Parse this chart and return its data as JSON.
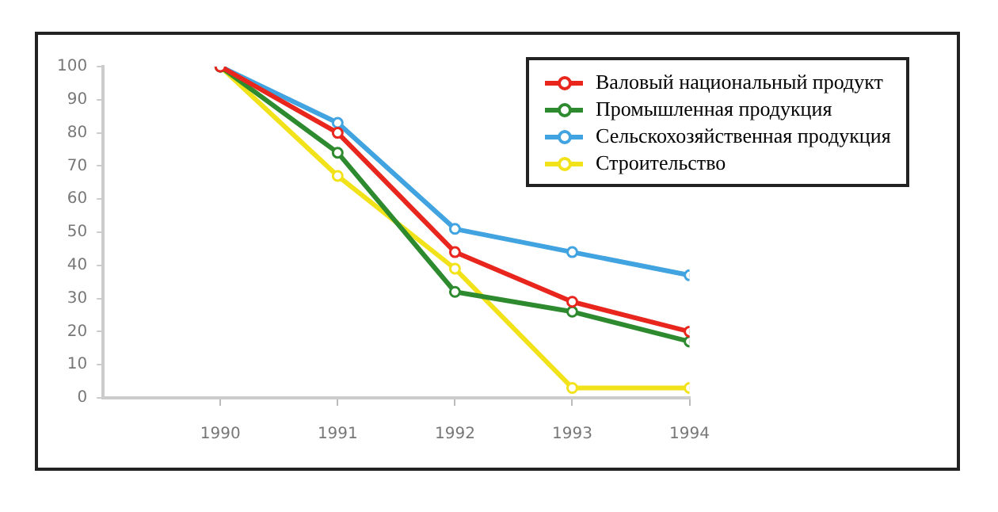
{
  "chart_data": {
    "type": "line",
    "x": [
      1990,
      1991,
      1992,
      1993,
      1994
    ],
    "xlim": [
      1989,
      1994
    ],
    "xticks": [
      1990,
      1991,
      1992,
      1993,
      1994
    ],
    "ylim": [
      0,
      100
    ],
    "yticks": [
      0,
      10,
      20,
      30,
      40,
      50,
      60,
      70,
      80,
      90,
      100
    ],
    "grid": false,
    "legend": "top right",
    "marker": "circle",
    "line_style": "solid",
    "series": [
      {
        "name": "Валовый национальный продукт",
        "color": "#e8261e",
        "values": [
          100,
          80,
          44,
          29,
          20
        ]
      },
      {
        "name": "Промышленная продукция",
        "color": "#2e8a2e",
        "values": [
          100,
          74,
          32,
          26,
          17
        ]
      },
      {
        "name": "Сельскохозяйственная продукция",
        "color": "#41a3e0",
        "values": [
          100,
          83,
          51,
          44,
          37
        ]
      },
      {
        "name": "Строительство",
        "color": "#f2e21a",
        "values": [
          100,
          67,
          39,
          3,
          3
        ]
      }
    ]
  }
}
